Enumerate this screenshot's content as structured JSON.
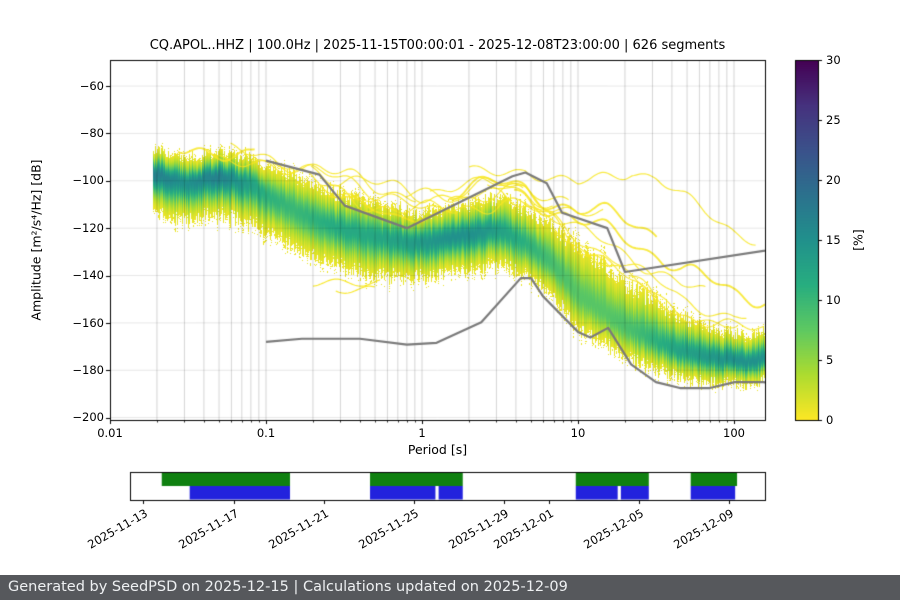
{
  "chart_data": {
    "type": "heatmap",
    "title": "CQ.APOL..HHZ | 100.0Hz | 2025-11-15T00:00:01 - 2025-12-08T23:00:00 | 626 segments",
    "xlabel": "Period [s]",
    "ylabel": "Amplitude [m²/s⁴/Hz] [dB]",
    "xlim": [
      0.01,
      158
    ],
    "ylim": [
      -201,
      -49
    ],
    "grid": true,
    "xticks": {
      "values": [
        0.01,
        0.1,
        1,
        10,
        100
      ],
      "labels": [
        "0.01",
        "0.1",
        "1",
        "10",
        "100"
      ]
    },
    "yticks": {
      "values": [
        -60,
        -80,
        -100,
        -120,
        -140,
        -160,
        -180,
        -200
      ],
      "labels": [
        "−60",
        "−80",
        "−100",
        "−120",
        "−140",
        "−160",
        "−180",
        "−200"
      ]
    },
    "colorbar": {
      "label": "[%]",
      "min": 0,
      "max": 30,
      "tick_values": [
        0,
        5,
        10,
        15,
        20,
        25,
        30
      ],
      "tick_labels": [
        "0",
        "5",
        "10",
        "15",
        "20",
        "25",
        "30"
      ],
      "colormap": "viridis_reversed"
    },
    "noise_model_color": "#7a7a7a",
    "noise_models": {
      "high": [
        [
          0.1,
          -91.5
        ],
        [
          0.22,
          -97.4
        ],
        [
          0.32,
          -110.5
        ],
        [
          0.8,
          -120.0
        ],
        [
          3.8,
          -98.1
        ],
        [
          4.6,
          -96.5
        ],
        [
          6.3,
          -101.0
        ],
        [
          7.9,
          -113.5
        ],
        [
          15.4,
          -120.0
        ],
        [
          20.0,
          -138.5
        ],
        [
          354.8,
          -126.0
        ]
      ],
      "low": [
        [
          0.1,
          -168.0
        ],
        [
          0.17,
          -166.7
        ],
        [
          0.4,
          -166.7
        ],
        [
          0.8,
          -169.2
        ],
        [
          1.24,
          -168.4
        ],
        [
          2.4,
          -159.7
        ],
        [
          4.3,
          -141.1
        ],
        [
          5.0,
          -141.1
        ],
        [
          6.0,
          -149.0
        ],
        [
          10.0,
          -163.8
        ],
        [
          12.0,
          -166.2
        ],
        [
          15.6,
          -162.1
        ],
        [
          21.9,
          -177.5
        ],
        [
          31.6,
          -185.0
        ],
        [
          45.0,
          -187.5
        ],
        [
          70.0,
          -187.5
        ],
        [
          101.0,
          -185.0
        ],
        [
          154.0,
          -185.0
        ],
        [
          328.0,
          -187.5
        ]
      ]
    },
    "ppsd": {
      "periods": [
        0.02,
        0.03,
        0.05,
        0.08,
        0.1,
        0.15,
        0.22,
        0.3,
        0.45,
        0.7,
        1.0,
        1.5,
        2.2,
        3.2,
        4.6,
        7.0,
        10,
        15,
        22,
        32,
        46,
        70,
        100,
        130,
        158
      ],
      "mode_db": [
        -97,
        -101,
        -98,
        -101,
        -106,
        -112,
        -117,
        -120,
        -123,
        -125,
        -126,
        -124,
        -122,
        -121,
        -126,
        -135,
        -148,
        -156,
        -163,
        -168,
        -172,
        -174,
        -176,
        -176,
        -175
      ],
      "peak_pct": [
        17,
        15,
        17,
        13,
        11,
        10,
        11,
        12,
        12,
        13,
        14,
        15,
        15,
        13,
        11,
        9,
        8,
        8,
        9,
        11,
        13,
        14,
        15,
        15,
        15
      ],
      "spread_up_db": [
        8,
        8,
        8,
        9,
        10,
        12,
        12,
        12,
        12,
        11,
        10,
        10,
        10,
        11,
        12,
        14,
        18,
        18,
        16,
        14,
        12,
        10,
        9,
        9,
        9
      ],
      "spread_down_db": [
        14,
        13,
        13,
        14,
        14,
        14,
        14,
        14,
        14,
        13,
        12,
        12,
        12,
        12,
        12,
        12,
        13,
        12,
        11,
        10,
        9,
        9,
        8,
        8,
        8
      ],
      "streak_top_db": [
        -88,
        -89,
        -87,
        -87,
        -85,
        -84,
        -86,
        -90,
        -93,
        -95,
        -96,
        -97,
        -97,
        -95,
        -93,
        -99,
        -101,
        -96,
        -92,
        -96,
        -105,
        -112,
        -118,
        -121,
        -124
      ],
      "streak_count": 18,
      "streak_color": "rgba(247,230,34,0.92)"
    },
    "low_outliers": [
      {
        "p1": 0.2,
        "p2": 0.55,
        "db": -143
      },
      {
        "p1": 0.28,
        "p2": 0.5,
        "db": -146
      }
    ]
  },
  "availability": {
    "data_color": "#0f8010",
    "psd_color": "#2222dd",
    "data_segments": [
      [
        0.05,
        0.252
      ],
      [
        0.378,
        0.524
      ],
      [
        0.702,
        0.817
      ],
      [
        0.883,
        0.956
      ]
    ],
    "psd_segments": [
      [
        0.094,
        0.252
      ],
      [
        0.378,
        0.481
      ],
      [
        0.486,
        0.524
      ],
      [
        0.702,
        0.768
      ],
      [
        0.773,
        0.817
      ],
      [
        0.883,
        0.953
      ]
    ],
    "ticks": [
      {
        "f": 0.021,
        "label": "2025-11-13"
      },
      {
        "f": 0.163,
        "label": "2025-11-17"
      },
      {
        "f": 0.305,
        "label": "2025-11-21"
      },
      {
        "f": 0.447,
        "label": "2025-11-25"
      },
      {
        "f": 0.589,
        "label": "2025-11-29"
      },
      {
        "f": 0.66,
        "label": "2025-12-01"
      },
      {
        "f": 0.801,
        "label": "2025-12-05"
      },
      {
        "f": 0.943,
        "label": "2025-12-09"
      }
    ]
  },
  "footer": {
    "text": "Generated by SeedPSD on 2025-12-15 | Calculations updated on 2025-12-09"
  }
}
